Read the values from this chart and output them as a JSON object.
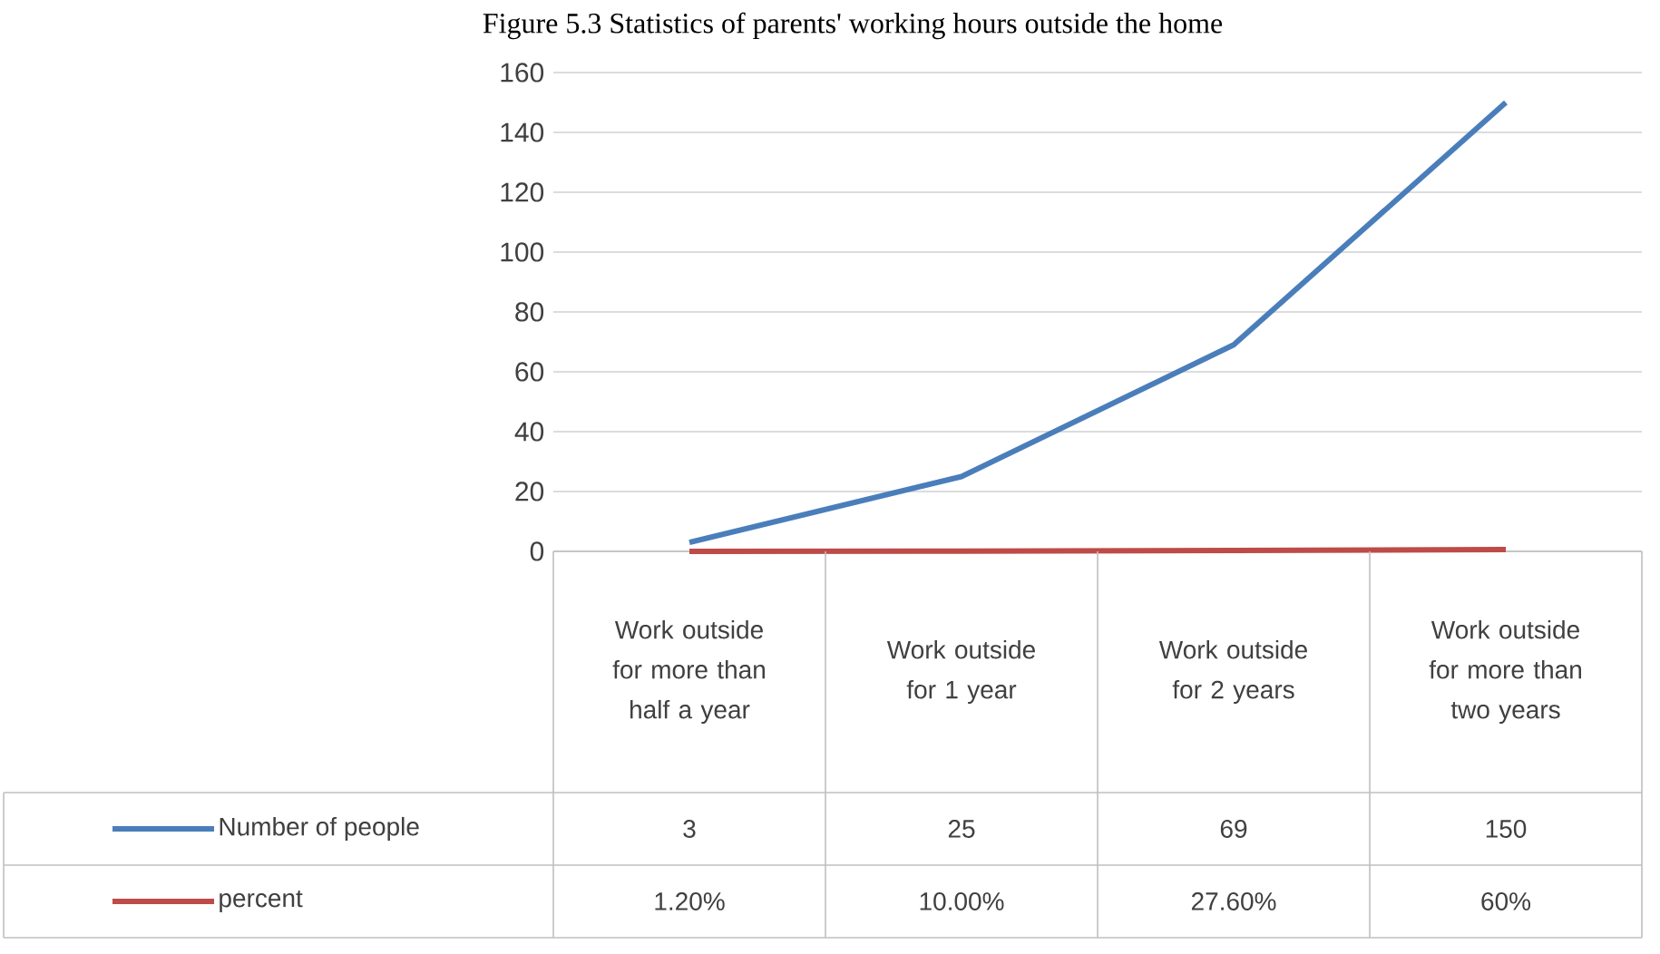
{
  "chart_data": {
    "type": "line",
    "title": "Figure 5.3 Statistics of parents' working hours outside the home",
    "categories": [
      "Work outside for more than half a year",
      "Work outside for 1 year",
      "Work outside for 2 years",
      "Work outside for more than two years"
    ],
    "series": [
      {
        "name": "Number of people",
        "color": "#4a7ebb",
        "values": [
          3,
          25,
          69,
          150
        ],
        "value_labels": [
          "3",
          "25",
          "69",
          "150"
        ]
      },
      {
        "name": "percent",
        "color": "#be4b48",
        "values": [
          0.012,
          0.1,
          0.276,
          0.6
        ],
        "value_labels": [
          "1.20%",
          "10.00%",
          "27.60%",
          "60%"
        ]
      }
    ],
    "ylim": [
      0,
      160
    ],
    "yticks": [
      0,
      20,
      40,
      60,
      80,
      100,
      120,
      140,
      160
    ],
    "grid": "y",
    "legend": "bottom"
  }
}
